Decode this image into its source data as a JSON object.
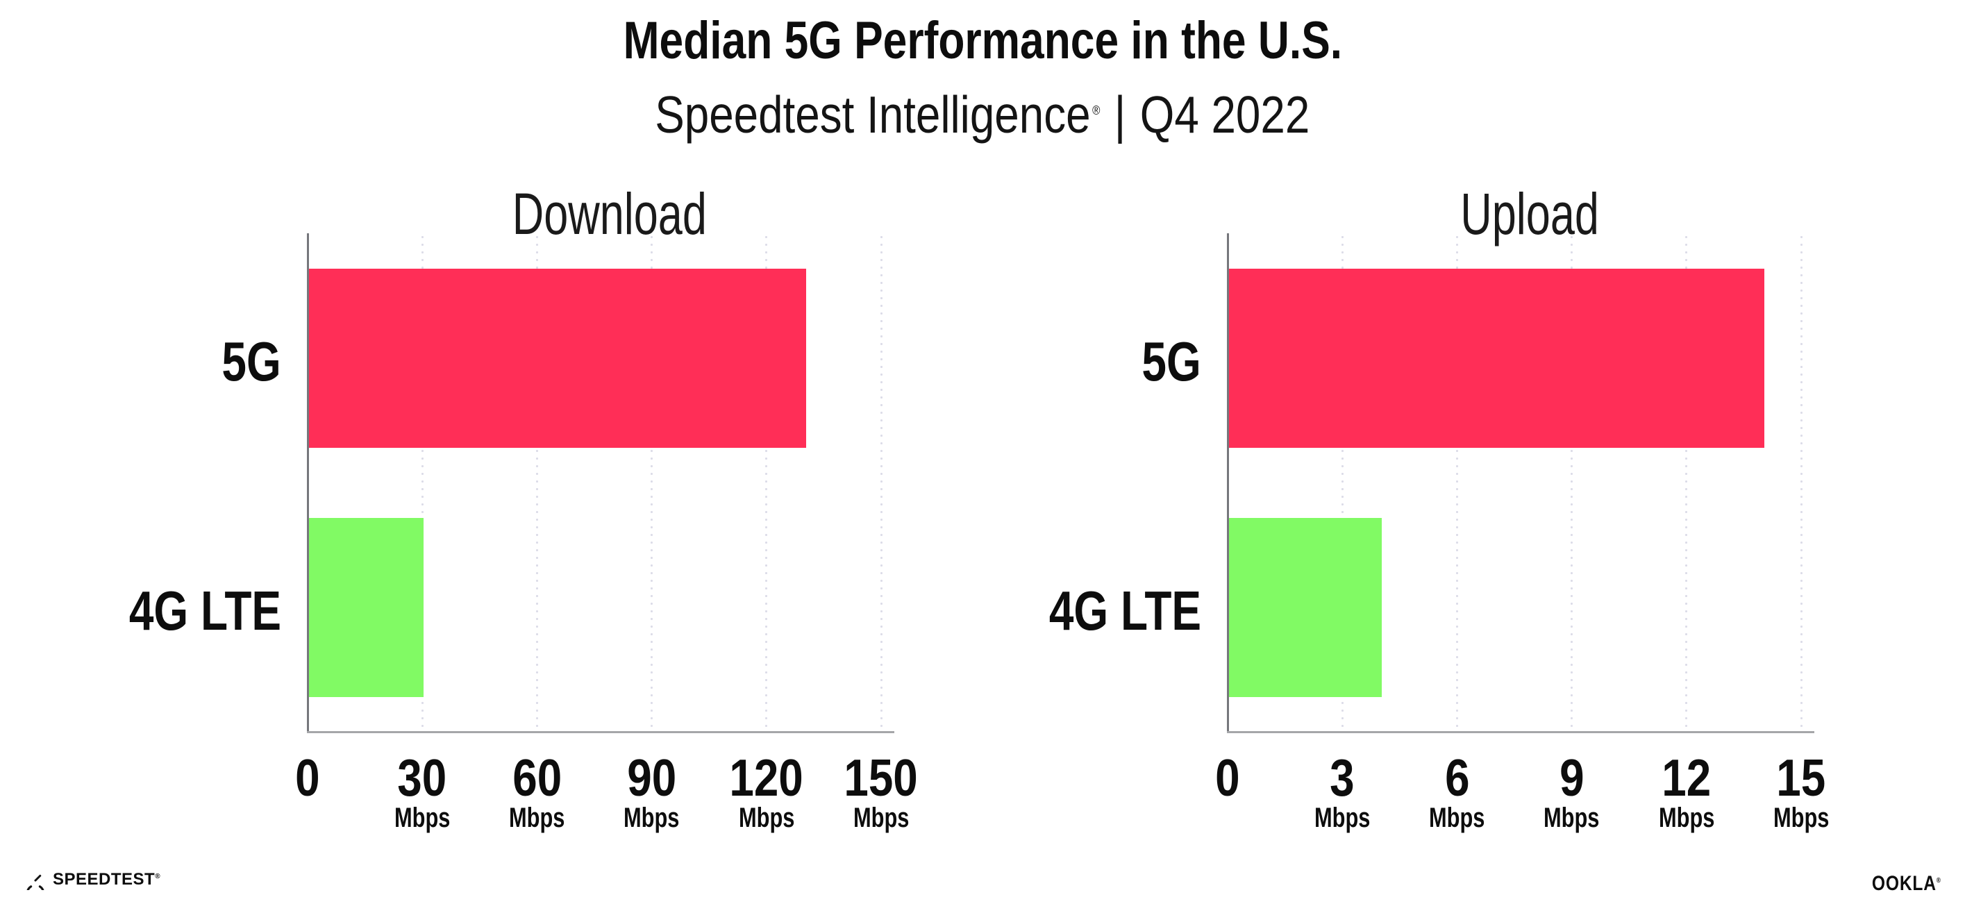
{
  "header": {
    "title": "Median 5G Performance in the U.S.",
    "subtitle": {
      "brand": "Speedtest Intelligence",
      "registered": "®",
      "separator": "|",
      "period": "Q4 2022"
    }
  },
  "chart_data": [
    {
      "type": "bar",
      "orientation": "horizontal",
      "title": "Download",
      "categories": [
        "5G",
        "4G LTE"
      ],
      "values": [
        130,
        30
      ],
      "value_unit": "Mbps",
      "xlim": [
        0,
        150
      ],
      "xticks": [
        0,
        30,
        60,
        90,
        120,
        150
      ],
      "xtick_unit_label": "Mbps",
      "unit_label_omitted_for_tick": 0,
      "bar_colors": [
        "#ff2e57",
        "#81fa64"
      ],
      "grid": {
        "direction": "vertical",
        "style": "dotted"
      },
      "legend": "none"
    },
    {
      "type": "bar",
      "orientation": "horizontal",
      "title": "Upload",
      "categories": [
        "5G",
        "4G LTE"
      ],
      "values": [
        14,
        4
      ],
      "value_unit": "Mbps",
      "xlim": [
        0,
        15
      ],
      "xticks": [
        0,
        3,
        6,
        9,
        12,
        15
      ],
      "xtick_unit_label": "Mbps",
      "unit_label_omitted_for_tick": 0,
      "bar_colors": [
        "#ff2e57",
        "#81fa64"
      ],
      "grid": {
        "direction": "vertical",
        "style": "dotted"
      },
      "legend": "none"
    }
  ],
  "colors": {
    "bar_5g": "#ff2e57",
    "bar_4g_lte": "#81fa64",
    "grid_dot": "#dcdce8",
    "axis_y": "#76777c",
    "axis_x": "#a5a6a9",
    "text": "#0d0d0d",
    "background": "#ffffff"
  },
  "footer": {
    "speedtest": {
      "label": "SPEEDTEST",
      "registered": "®",
      "icon": "speedtest-gauge-icon"
    },
    "ookla": {
      "label": "OOKLA",
      "registered": "®"
    }
  }
}
